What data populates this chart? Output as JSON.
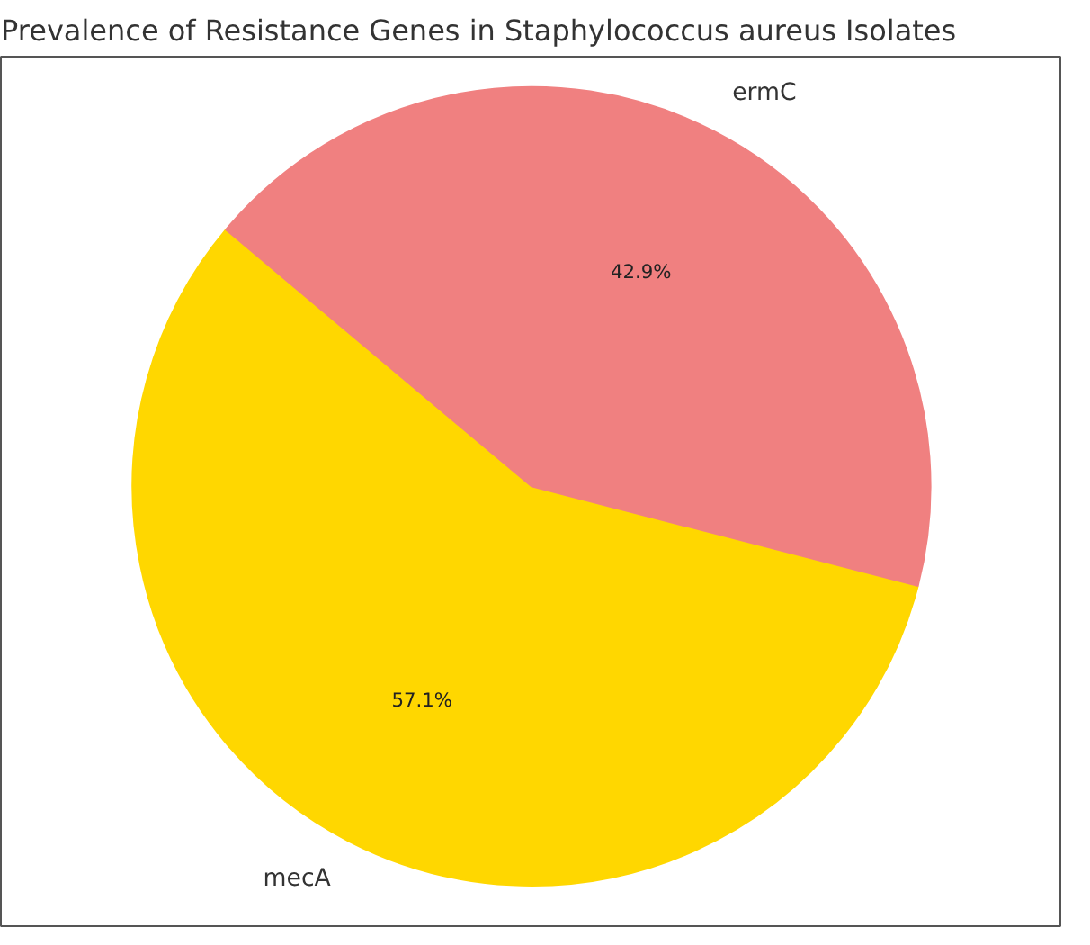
{
  "chart_data": {
    "type": "pie",
    "title": "Prevalence of Resistance Genes in Staphylococcus aureus Isolates",
    "categories": [
      "mecA",
      "ermC"
    ],
    "values": [
      57.1,
      42.9
    ],
    "colors": [
      "#ffd700",
      "#f08080"
    ],
    "value_labels": [
      "57.1%",
      "42.9%"
    ]
  }
}
